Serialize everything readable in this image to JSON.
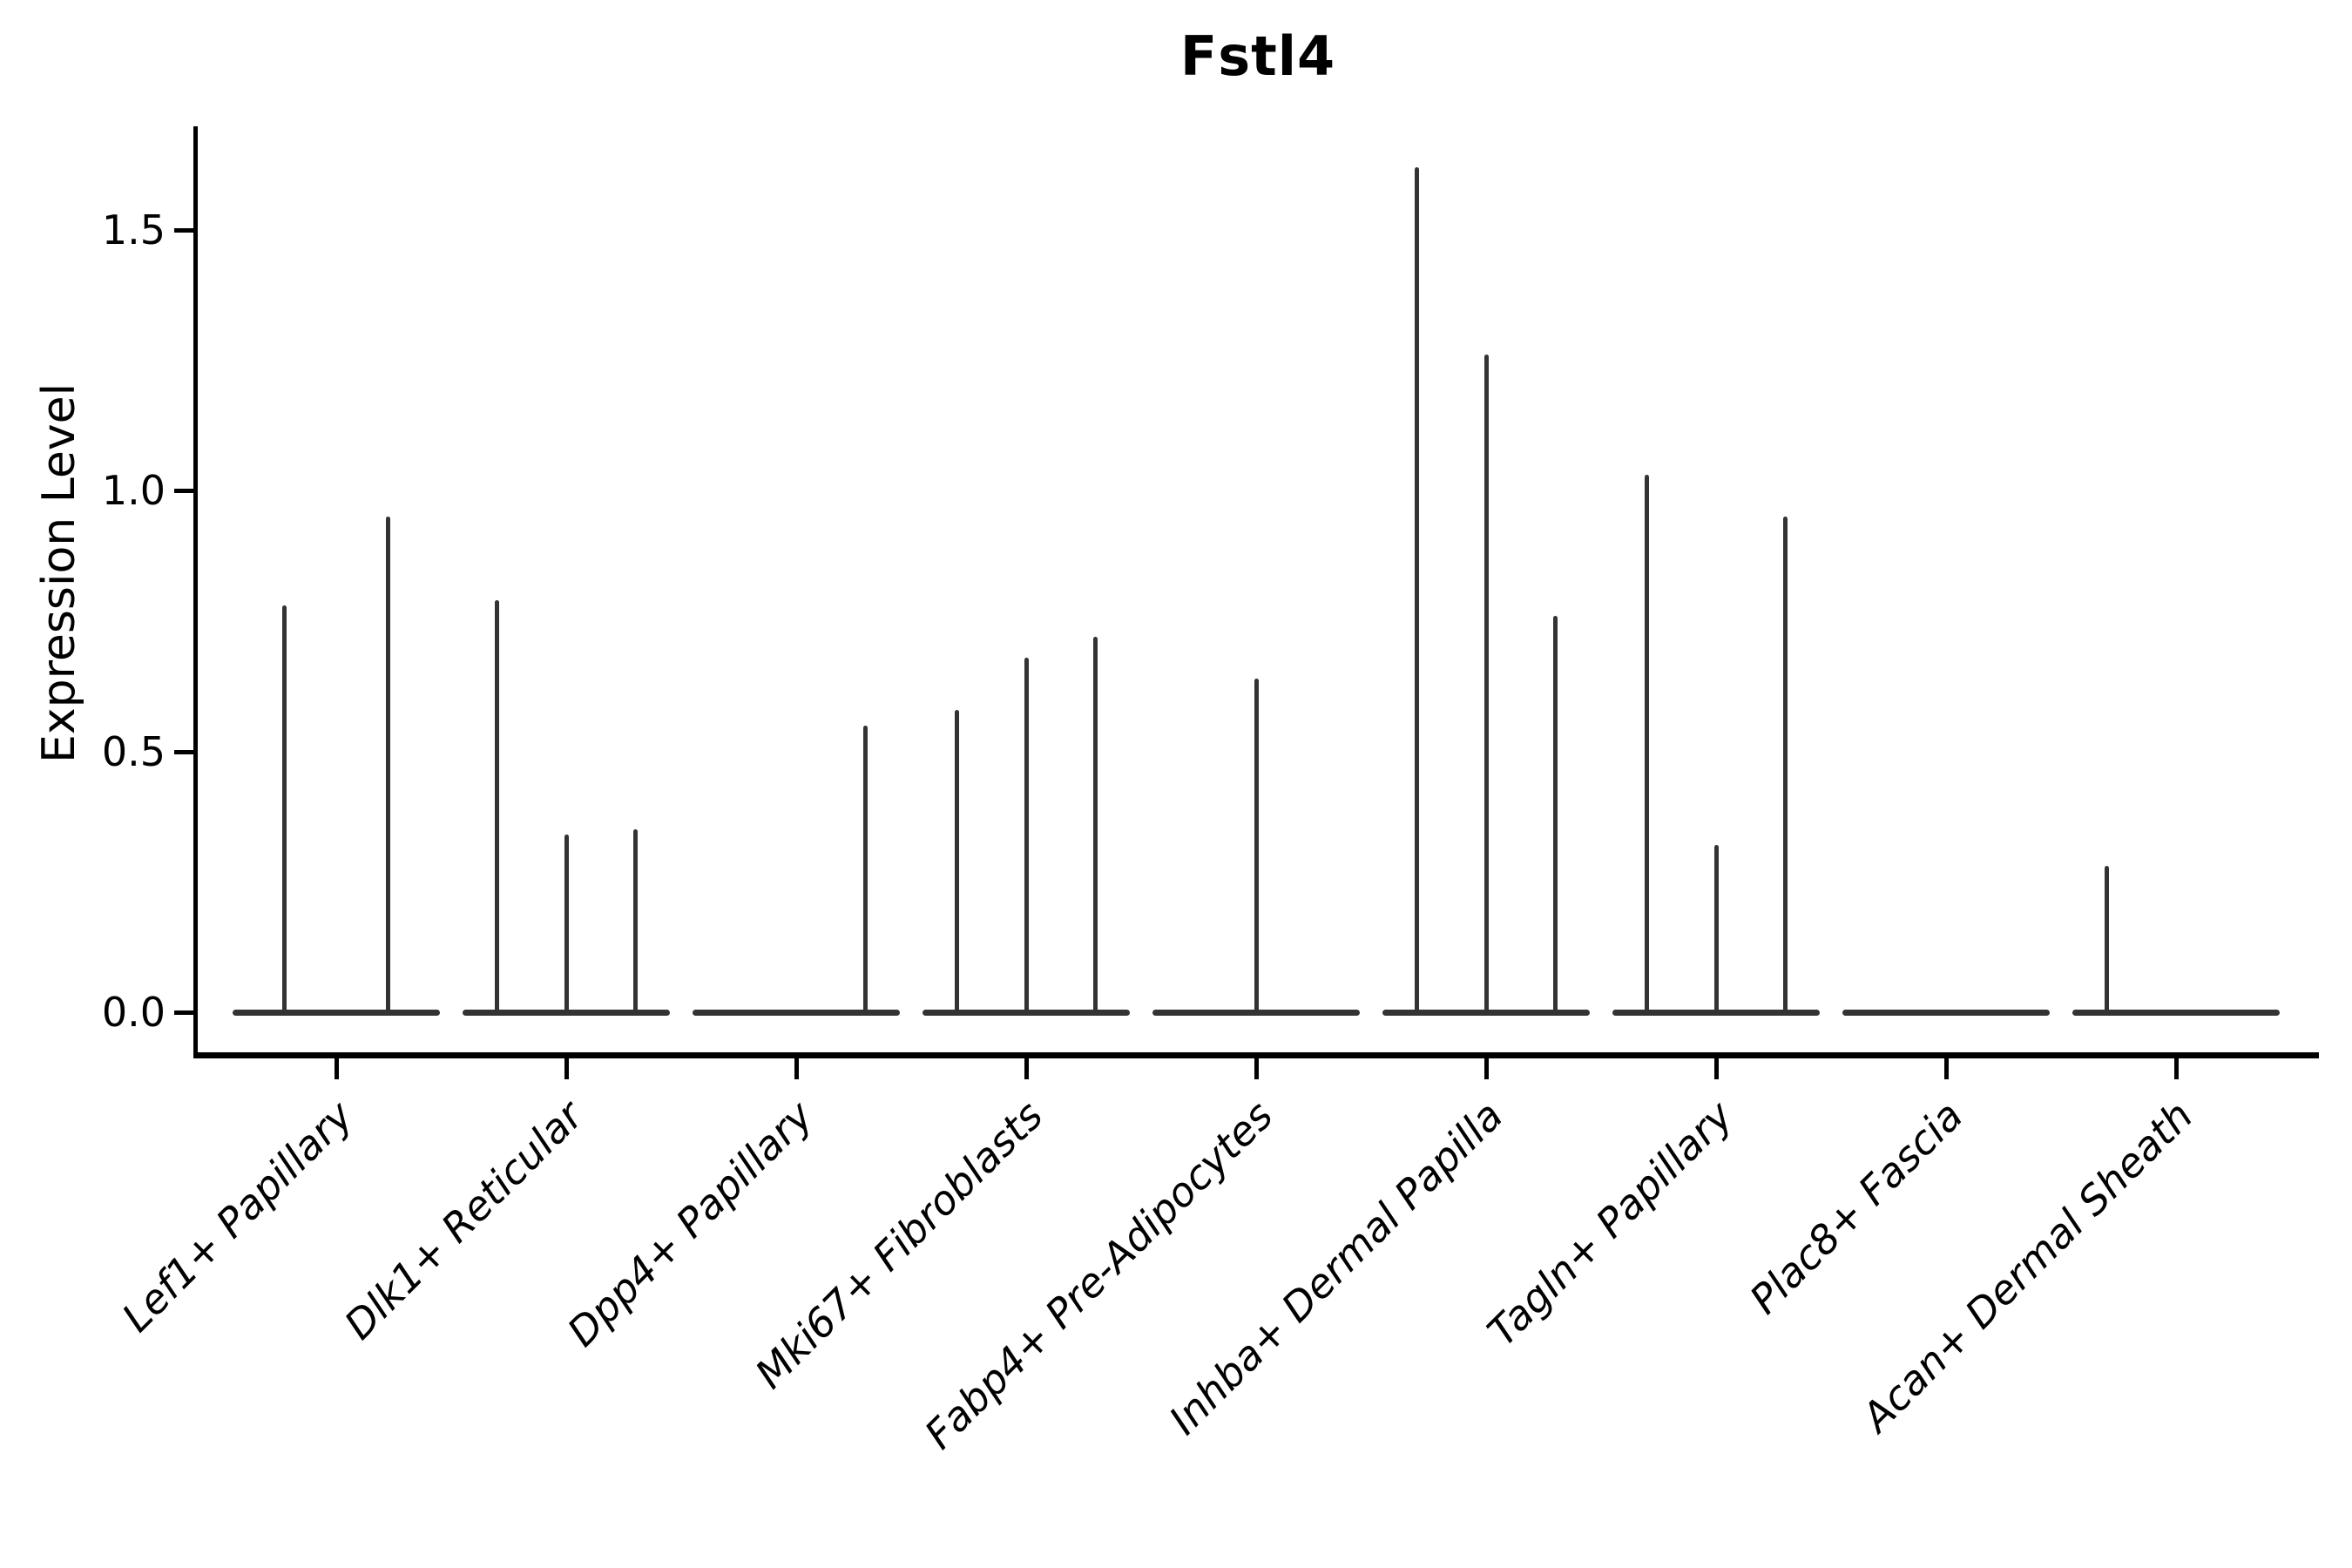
{
  "chart_data": {
    "type": "violin",
    "title": "Fstl4",
    "ylabel": "Expression Level",
    "xlabel": "",
    "ylim": [
      -0.08,
      1.7
    ],
    "grid": false,
    "legend": null,
    "yticks": [
      {
        "label": "0.0",
        "value": 0.0
      },
      {
        "label": "0.5",
        "value": 0.5
      },
      {
        "label": "1.0",
        "value": 1.0
      },
      {
        "label": "1.5",
        "value": 1.5
      }
    ],
    "colors": {
      "violin": "#333333",
      "axis": "#000000",
      "text": "#000000",
      "background": "#ffffff"
    },
    "categories": [
      {
        "label": "Lef1+ Papillary",
        "spikes": [
          {
            "offset": -0.225,
            "height": 0.78
          },
          {
            "offset": 0.225,
            "height": 0.95
          }
        ]
      },
      {
        "label": "Dlk1+ Reticular",
        "spikes": [
          {
            "offset": -0.3,
            "height": 0.79
          },
          {
            "offset": 0.0,
            "height": 0.34
          },
          {
            "offset": 0.3,
            "height": 0.35
          }
        ]
      },
      {
        "label": "Dpp4+ Papillary",
        "spikes": [
          {
            "offset": 0.3,
            "height": 0.55
          }
        ]
      },
      {
        "label": "Mki67+ Fibroblasts",
        "spikes": [
          {
            "offset": -0.3,
            "height": 0.58
          },
          {
            "offset": 0.0,
            "height": 0.68
          },
          {
            "offset": 0.3,
            "height": 0.72
          }
        ]
      },
      {
        "label": "Fabp4+ Pre-Adipocytes",
        "spikes": [
          {
            "offset": 0.0,
            "height": 0.64
          }
        ]
      },
      {
        "label": "Inhba+ Dermal Papilla",
        "spikes": [
          {
            "offset": -0.3,
            "height": 1.62
          },
          {
            "offset": 0.0,
            "height": 1.26
          },
          {
            "offset": 0.3,
            "height": 0.76
          }
        ]
      },
      {
        "label": "Tagln+ Papillary",
        "spikes": [
          {
            "offset": -0.3,
            "height": 1.03
          },
          {
            "offset": 0.0,
            "height": 0.32
          },
          {
            "offset": 0.3,
            "height": 0.95
          }
        ]
      },
      {
        "label": "Plac8+ Fascia",
        "spikes": []
      },
      {
        "label": "Acan+ Dermal Sheath",
        "spikes": [
          {
            "offset": -0.3,
            "height": 0.28
          }
        ]
      }
    ]
  }
}
